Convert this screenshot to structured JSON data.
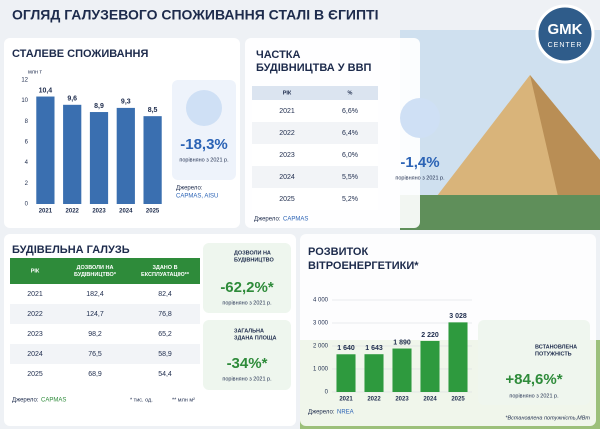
{
  "header": {
    "title": "ОГЛЯД ГАЛУЗЕВОГО СПОЖИВАННЯ СТАЛІ В ЄГИПТІ",
    "logo": [
      "GMK",
      "CENTER"
    ]
  },
  "chart_data": [
    {
      "type": "bar",
      "title": "СТАЛЕВЕ СПОЖИВАННЯ",
      "y_label": "млн т",
      "categories": [
        "2021",
        "2022",
        "2023",
        "2024",
        "2025"
      ],
      "values": [
        10.4,
        9.6,
        8.9,
        9.3,
        8.5
      ],
      "value_labels": [
        "10,4",
        "9,6",
        "8,9",
        "9,3",
        "8,5"
      ],
      "color": "#3a6fb0",
      "ylim": [
        0,
        12
      ],
      "yticks": [
        0,
        2,
        4,
        6,
        8,
        10,
        12
      ],
      "grid": false,
      "source": [
        "Джерело:",
        "CAPMAS, AISU"
      ]
    },
    {
      "type": "bar",
      "title": [
        "РОЗВИТОК",
        "ВІТРОЕНЕРГЕТИКИ*"
      ],
      "categories": [
        "2021",
        "2022",
        "2023",
        "2024",
        "2025"
      ],
      "values": [
        1640,
        1643,
        1890,
        2220,
        3028
      ],
      "value_labels": [
        "1 640",
        "1 643",
        "1 890",
        "2 220",
        "3 028"
      ],
      "color": "#2e9a3e",
      "ylim": [
        0,
        4000
      ],
      "yticks": [
        0,
        {
          "value": 1000,
          "label": "1 000"
        },
        {
          "value": 2000,
          "label": "2 000"
        },
        {
          "value": 3000,
          "label": "3 000"
        },
        {
          "value": 4000,
          "label": "4 000"
        }
      ],
      "grid": true,
      "source": [
        "Джерело:",
        "NREA"
      ],
      "footnote": "*Встановлена потужність,МВт"
    }
  ],
  "tables": [
    {
      "title": [
        "ЧАСТКА",
        "БУДІВНИЦТВА У ВВП"
      ],
      "headers": [
        [
          "РІК"
        ],
        [
          "%"
        ]
      ],
      "rows": [
        [
          "2021",
          "6,6%"
        ],
        [
          "2022",
          "6,4%"
        ],
        [
          "2023",
          "6,0%"
        ],
        [
          "2024",
          "5,5%"
        ],
        [
          "2025",
          "5,2%"
        ]
      ],
      "source": [
        "Джерело:",
        "CAPMAS"
      ]
    },
    {
      "title": [
        "БУДІВЕЛЬНА ГАЛУЗЬ"
      ],
      "headers": [
        [
          "РІК"
        ],
        [
          "ДОЗВОЛИ НА",
          "БУДІВНИЦТВО*"
        ],
        [
          "ЗДАНО В",
          "ЕКСПЛУАТАЦІЮ**"
        ]
      ],
      "rows": [
        [
          "2021",
          "182,4",
          "82,4"
        ],
        [
          "2022",
          "124,7",
          "76,8"
        ],
        [
          "2023",
          "98,2",
          "65,2"
        ],
        [
          "2024",
          "76,5",
          "58,9"
        ],
        [
          "2025",
          "68,9",
          "54,4"
        ]
      ],
      "source": [
        "Джерело:",
        "CAPMAS"
      ],
      "footnotes": [
        "* тис. од.",
        "** млн м²"
      ]
    }
  ],
  "stats": [
    {
      "value": "-18,3%",
      "note": "порівняно з 2021 р."
    },
    {
      "value": "-1,4%",
      "note": "порівняно з 2021 р."
    },
    {
      "label": [
        "ДОЗВОЛИ НА",
        "БУДІВНИЦТВО"
      ],
      "value": "-62,2%*",
      "note": "порівняно з 2021 р."
    },
    {
      "label": [
        "ЗАГАЛЬНА",
        "ЗДАНА ПЛОЩА"
      ],
      "value": "-34%*",
      "note": "порівняно з 2021 р."
    },
    {
      "label": [
        "ВСТАНОВЛЕНА",
        "ПОТУЖНІСТЬ"
      ],
      "value": "+84,6%*",
      "note": "порівняно з 2021 р."
    }
  ]
}
